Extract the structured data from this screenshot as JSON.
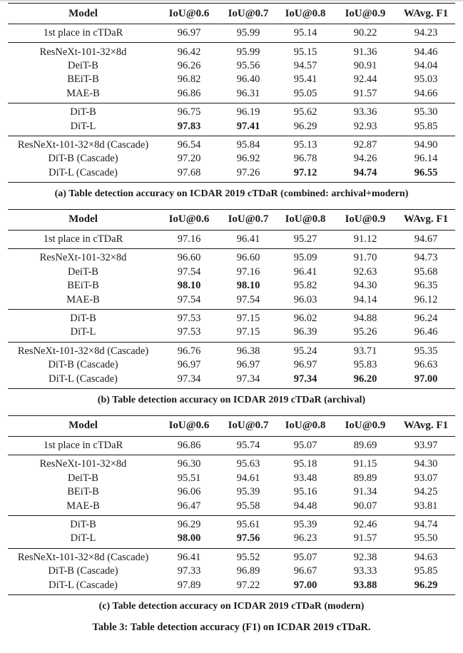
{
  "page": {
    "main_caption": "Table 3: Table detection accuracy (F1) on ICDAR 2019 cTDaR."
  },
  "columns": [
    "Model",
    "IoU@0.6",
    "IoU@0.7",
    "IoU@0.8",
    "IoU@0.9",
    "WAvg. F1"
  ],
  "tables": [
    {
      "caption": "(a) Table detection accuracy on ICDAR 2019 cTDaR (combined: archival+modern)",
      "sections": [
        {
          "rows": [
            {
              "model": "1st place in cTDaR",
              "values": [
                "96.97",
                "95.99",
                "95.14",
                "90.22",
                "94.23"
              ],
              "bold": []
            }
          ]
        },
        {
          "rows": [
            {
              "model": "ResNeXt-101-32×8d",
              "values": [
                "96.42",
                "95.99",
                "95.15",
                "91.36",
                "94.46"
              ],
              "bold": []
            },
            {
              "model": "DeiT-B",
              "values": [
                "96.26",
                "95.56",
                "94.57",
                "90.91",
                "94.04"
              ],
              "bold": []
            },
            {
              "model": "BEiT-B",
              "values": [
                "96.82",
                "96.40",
                "95.41",
                "92.44",
                "95.03"
              ],
              "bold": []
            },
            {
              "model": "MAE-B",
              "values": [
                "96.86",
                "96.31",
                "95.05",
                "91.57",
                "94.66"
              ],
              "bold": []
            }
          ]
        },
        {
          "rows": [
            {
              "model": "DiT-B",
              "values": [
                "96.75",
                "96.19",
                "95.62",
                "93.36",
                "95.30"
              ],
              "bold": []
            },
            {
              "model": "DiT-L",
              "values": [
                "97.83",
                "97.41",
                "96.29",
                "92.93",
                "95.85"
              ],
              "bold": [
                0,
                1
              ]
            }
          ]
        },
        {
          "rows": [
            {
              "model": "ResNeXt-101-32×8d (Cascade)",
              "values": [
                "96.54",
                "95.84",
                "95.13",
                "92.87",
                "94.90"
              ],
              "bold": []
            },
            {
              "model": "DiT-B (Cascade)",
              "values": [
                "97.20",
                "96.92",
                "96.78",
                "94.26",
                "96.14"
              ],
              "bold": []
            },
            {
              "model": "DiT-L (Cascade)",
              "values": [
                "97.68",
                "97.26",
                "97.12",
                "94.74",
                "96.55"
              ],
              "bold": [
                2,
                3,
                4
              ]
            }
          ]
        }
      ]
    },
    {
      "caption": "(b) Table detection accuracy on ICDAR 2019 cTDaR (archival)",
      "sections": [
        {
          "rows": [
            {
              "model": "1st place in cTDaR",
              "values": [
                "97.16",
                "96.41",
                "95.27",
                "91.12",
                "94.67"
              ],
              "bold": []
            }
          ]
        },
        {
          "rows": [
            {
              "model": "ResNeXt-101-32×8d",
              "values": [
                "96.60",
                "96.60",
                "95.09",
                "91.70",
                "94.73"
              ],
              "bold": []
            },
            {
              "model": "DeiT-B",
              "values": [
                "97.54",
                "97.16",
                "96.41",
                "92.63",
                "95.68"
              ],
              "bold": []
            },
            {
              "model": "BEiT-B",
              "values": [
                "98.10",
                "98.10",
                "95.82",
                "94.30",
                "96.35"
              ],
              "bold": [
                0,
                1
              ]
            },
            {
              "model": "MAE-B",
              "values": [
                "97.54",
                "97.54",
                "96.03",
                "94.14",
                "96.12"
              ],
              "bold": []
            }
          ]
        },
        {
          "rows": [
            {
              "model": "DiT-B",
              "values": [
                "97.53",
                "97.15",
                "96.02",
                "94.88",
                "96.24"
              ],
              "bold": []
            },
            {
              "model": "DiT-L",
              "values": [
                "97.53",
                "97.15",
                "96.39",
                "95.26",
                "96.46"
              ],
              "bold": []
            }
          ]
        },
        {
          "rows": [
            {
              "model": "ResNeXt-101-32×8d (Cascade)",
              "values": [
                "96.76",
                "96.38",
                "95.24",
                "93.71",
                "95.35"
              ],
              "bold": []
            },
            {
              "model": "DiT-B (Cascade)",
              "values": [
                "96.97",
                "96.97",
                "96.97",
                "95.83",
                "96.63"
              ],
              "bold": []
            },
            {
              "model": "DiT-L (Cascade)",
              "values": [
                "97.34",
                "97.34",
                "97.34",
                "96.20",
                "97.00"
              ],
              "bold": [
                2,
                3,
                4
              ]
            }
          ]
        }
      ]
    },
    {
      "caption": "(c) Table detection accuracy on ICDAR 2019 cTDaR (modern)",
      "sections": [
        {
          "rows": [
            {
              "model": "1st place in cTDaR",
              "values": [
                "96.86",
                "95.74",
                "95.07",
                "89.69",
                "93.97"
              ],
              "bold": []
            }
          ]
        },
        {
          "rows": [
            {
              "model": "ResNeXt-101-32×8d",
              "values": [
                "96.30",
                "95.63",
                "95.18",
                "91.15",
                "94.30"
              ],
              "bold": []
            },
            {
              "model": "DeiT-B",
              "values": [
                "95.51",
                "94.61",
                "93.48",
                "89.89",
                "93.07"
              ],
              "bold": []
            },
            {
              "model": "BEiT-B",
              "values": [
                "96.06",
                "95.39",
                "95.16",
                "91.34",
                "94.25"
              ],
              "bold": []
            },
            {
              "model": "MAE-B",
              "values": [
                "96.47",
                "95.58",
                "94.48",
                "90.07",
                "93.81"
              ],
              "bold": []
            }
          ]
        },
        {
          "rows": [
            {
              "model": "DiT-B",
              "values": [
                "96.29",
                "95.61",
                "95.39",
                "92.46",
                "94.74"
              ],
              "bold": []
            },
            {
              "model": "DiT-L",
              "values": [
                "98.00",
                "97.56",
                "96.23",
                "91.57",
                "95.50"
              ],
              "bold": [
                0,
                1
              ]
            }
          ]
        },
        {
          "rows": [
            {
              "model": "ResNeXt-101-32×8d (Cascade)",
              "values": [
                "96.41",
                "95.52",
                "95.07",
                "92.38",
                "94.63"
              ],
              "bold": []
            },
            {
              "model": "DiT-B (Cascade)",
              "values": [
                "97.33",
                "96.89",
                "96.67",
                "93.33",
                "95.85"
              ],
              "bold": []
            },
            {
              "model": "DiT-L (Cascade)",
              "values": [
                "97.89",
                "97.22",
                "97.00",
                "93.88",
                "96.29"
              ],
              "bold": [
                2,
                3,
                4
              ]
            }
          ]
        }
      ]
    }
  ]
}
